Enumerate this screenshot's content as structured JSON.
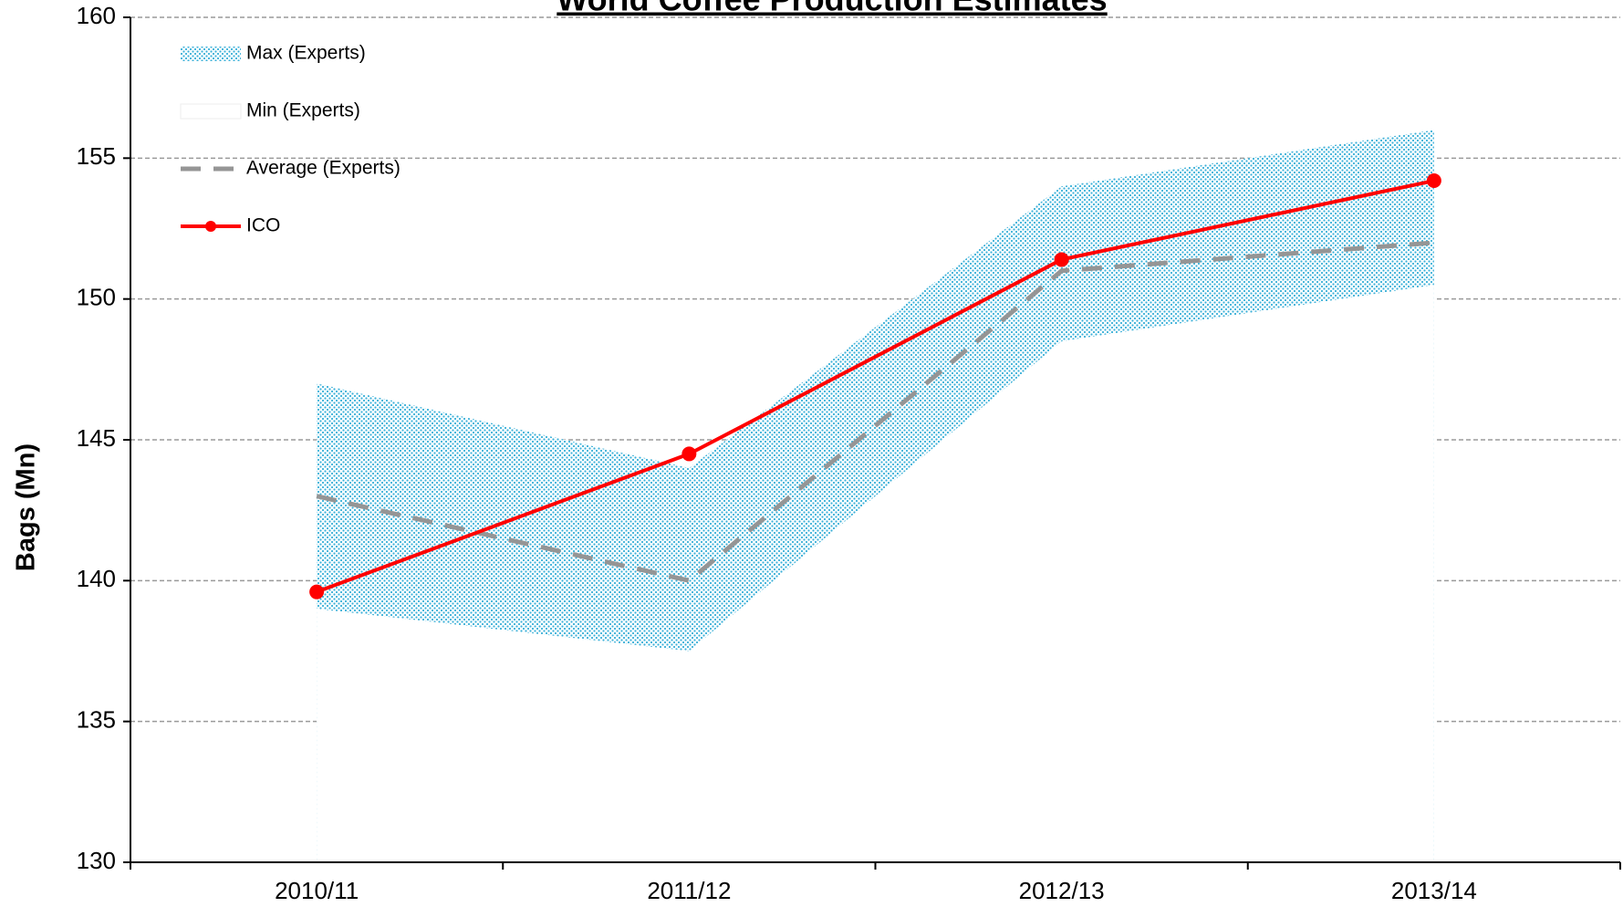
{
  "chart_data": {
    "type": "line",
    "title": "World Coffee Production Estimates",
    "ylabel": "Bags (Mn)",
    "categories": [
      "2010/11",
      "2011/12",
      "2012/13",
      "2013/14"
    ],
    "series": [
      {
        "name": "Max (Experts)",
        "style": "area",
        "color": "#3ab0d8",
        "values": [
          147,
          144,
          154,
          156
        ]
      },
      {
        "name": "Min (Experts)",
        "style": "area",
        "color": "#ffffff",
        "values": [
          139,
          137.5,
          148.5,
          150.5
        ]
      },
      {
        "name": "Average (Experts)",
        "style": "dashed",
        "color": "#959595",
        "values": [
          143,
          140,
          151,
          152
        ]
      },
      {
        "name": "ICO",
        "style": "markers",
        "color": "#ff0000",
        "values": [
          139.6,
          144.5,
          151.4,
          154.2
        ]
      }
    ],
    "ylim": [
      130,
      160
    ],
    "yticks": [
      130,
      135,
      140,
      145,
      150,
      155,
      160
    ],
    "grid": true,
    "legend": "upper left"
  }
}
